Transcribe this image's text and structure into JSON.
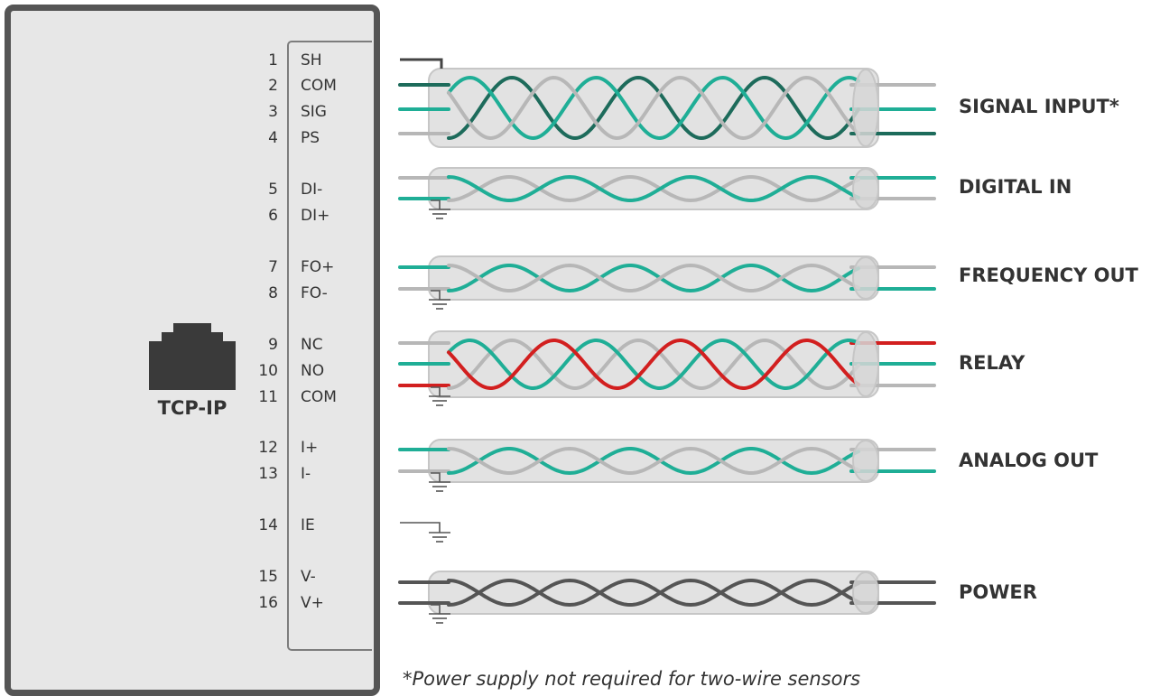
{
  "device": {
    "connector_label": "TCP-IP",
    "terminals": [
      {
        "number": "1",
        "name": "SH"
      },
      {
        "number": "2",
        "name": "COM"
      },
      {
        "number": "3",
        "name": "SIG"
      },
      {
        "number": "4",
        "name": "PS"
      },
      {
        "number": "5",
        "name": "DI-"
      },
      {
        "number": "6",
        "name": "DI+"
      },
      {
        "number": "7",
        "name": "FO+"
      },
      {
        "number": "8",
        "name": "FO-"
      },
      {
        "number": "9",
        "name": "NC"
      },
      {
        "number": "10",
        "name": "NO"
      },
      {
        "number": "11",
        "name": "COM"
      },
      {
        "number": "12",
        "name": "I+"
      },
      {
        "number": "13",
        "name": "I-"
      },
      {
        "number": "14",
        "name": "IE"
      },
      {
        "number": "15",
        "name": "V-"
      },
      {
        "number": "16",
        "name": "V+"
      }
    ]
  },
  "cables": [
    {
      "label": "SIGNAL INPUT*",
      "wire_colors": [
        "#1d6b5b",
        "#1fae96",
        "#b7b7b7"
      ]
    },
    {
      "label": "DIGITAL IN",
      "wire_colors": [
        "#b7b7b7",
        "#1fae96"
      ]
    },
    {
      "label": "FREQUENCY OUT",
      "wire_colors": [
        "#1fae96",
        "#b7b7b7"
      ]
    },
    {
      "label": "RELAY",
      "wire_colors": [
        "#b7b7b7",
        "#1fae96",
        "#d21f1f"
      ]
    },
    {
      "label": "ANALOG OUT",
      "wire_colors": [
        "#1fae96",
        "#b7b7b7"
      ]
    },
    {
      "label": "POWER",
      "wire_colors": [
        "#555555",
        "#555555"
      ]
    }
  ],
  "footnote": "*Power supply not required for two-wire sensors",
  "colors": {
    "housing": "#e7e7e7",
    "housing_border": "#555555",
    "shield_tube": "#e2e2e2",
    "ground_symbol": "#555555"
  },
  "icons": {
    "connector": "rj45-port-icon",
    "ground": "ground-symbol-icon"
  }
}
